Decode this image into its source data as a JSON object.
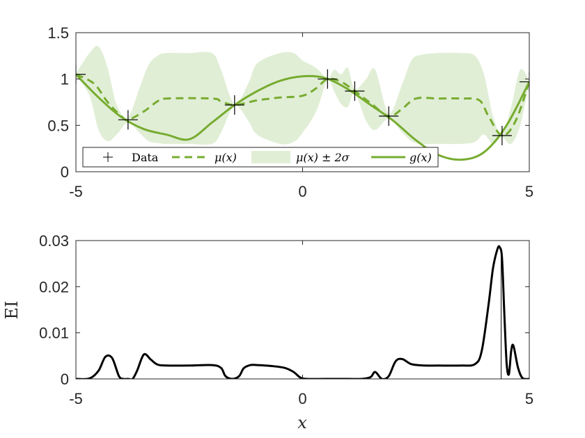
{
  "colors": {
    "green": "#77ac30",
    "band": "#e1eed6",
    "black": "#000000",
    "axis": "#262626"
  },
  "chart_data": [
    {
      "type": "line",
      "xlim": [
        -5,
        5
      ],
      "ylim": [
        0,
        1.5
      ],
      "xticks": [
        "-5",
        "0",
        "5"
      ],
      "yticks": [
        "0",
        "0.5",
        "1",
        "1.5"
      ],
      "xticks_values": [
        -5,
        0,
        5
      ],
      "yticks_values": [
        0,
        0.5,
        1,
        1.5
      ],
      "grid": false,
      "legend": {
        "placement": "bottom-left",
        "entries": [
          "Data",
          "μ(x)",
          "μ(x) ± 2σ",
          "g(x)"
        ]
      },
      "data_points": {
        "x": [
          -5.0,
          -3.85,
          -1.5,
          0.55,
          1.15,
          1.9,
          4.4,
          5.0
        ],
        "y": [
          1.05,
          0.56,
          0.72,
          1.0,
          0.87,
          0.6,
          0.39,
          0.97
        ]
      },
      "g": {
        "x": [
          -5.0,
          -4.5,
          -4.0,
          -3.5,
          -3.0,
          -2.5,
          -2.0,
          -1.5,
          -1.0,
          -0.5,
          0.0,
          0.5,
          1.0,
          1.5,
          2.0,
          2.5,
          3.0,
          3.5,
          4.0,
          4.5,
          5.0
        ],
        "y": [
          1.05,
          0.8,
          0.59,
          0.46,
          0.4,
          0.35,
          0.53,
          0.72,
          0.87,
          0.98,
          1.03,
          1.01,
          0.89,
          0.72,
          0.55,
          0.34,
          0.18,
          0.13,
          0.21,
          0.5,
          0.97
        ]
      },
      "mu": {
        "x": [
          -5.0,
          -4.6,
          -4.3,
          -4.0,
          -3.85,
          -3.5,
          -3.2,
          -3.0,
          -2.0,
          -1.8,
          -1.5,
          -1.0,
          -0.5,
          0.0,
          0.3,
          0.55,
          0.85,
          1.15,
          1.5,
          1.9,
          2.2,
          2.5,
          3.0,
          3.5,
          3.9,
          4.1,
          4.4,
          4.7,
          5.0
        ],
        "y": [
          1.05,
          0.95,
          0.75,
          0.6,
          0.56,
          0.65,
          0.76,
          0.79,
          0.79,
          0.76,
          0.72,
          0.77,
          0.8,
          0.82,
          0.9,
          1.0,
          0.97,
          0.87,
          0.74,
          0.6,
          0.68,
          0.79,
          0.79,
          0.79,
          0.77,
          0.6,
          0.39,
          0.55,
          0.97
        ]
      },
      "band": {
        "x": [
          -5.0,
          -4.7,
          -4.5,
          -4.3,
          -4.1,
          -3.85,
          -3.6,
          -3.4,
          -3.2,
          -3.0,
          -2.5,
          -2.0,
          -1.8,
          -1.5,
          -1.2,
          -1.0,
          -0.5,
          -0.2,
          0.0,
          0.3,
          0.55,
          0.7,
          0.85,
          1.0,
          1.15,
          1.4,
          1.6,
          1.9,
          2.2,
          2.4,
          2.6,
          3.0,
          3.5,
          3.8,
          4.0,
          4.2,
          4.4,
          4.6,
          4.8,
          5.0
        ],
        "upper": [
          1.06,
          1.28,
          1.35,
          1.12,
          0.72,
          0.59,
          0.9,
          1.15,
          1.25,
          1.28,
          1.28,
          1.28,
          1.1,
          0.73,
          0.95,
          1.17,
          1.28,
          1.28,
          1.2,
          1.12,
          1.01,
          1.1,
          1.05,
          1.12,
          0.89,
          1.0,
          1.1,
          0.63,
          0.95,
          1.2,
          1.26,
          1.28,
          1.28,
          1.25,
          1.05,
          0.6,
          0.41,
          0.7,
          1.1,
          0.98
        ],
        "lower": [
          1.04,
          0.82,
          0.45,
          0.33,
          0.4,
          0.53,
          0.42,
          0.33,
          0.31,
          0.3,
          0.3,
          0.3,
          0.42,
          0.71,
          0.55,
          0.4,
          0.3,
          0.32,
          0.42,
          0.65,
          0.99,
          0.86,
          0.73,
          0.7,
          0.85,
          0.55,
          0.45,
          0.57,
          0.42,
          0.33,
          0.3,
          0.3,
          0.3,
          0.32,
          0.4,
          0.3,
          0.37,
          0.3,
          0.5,
          0.96
        ]
      }
    },
    {
      "type": "line",
      "xlim": [
        -5,
        5
      ],
      "ylim": [
        0,
        0.03
      ],
      "xticks": [
        "-5",
        "0",
        "5"
      ],
      "yticks": [
        "0",
        "0.01",
        "0.02",
        "0.03"
      ],
      "xticks_values": [
        -5,
        0,
        5
      ],
      "yticks_values": [
        0,
        0.01,
        0.02,
        0.03
      ],
      "ylabel": "EI",
      "xlabel": "x",
      "grid": false,
      "ei": {
        "x": [
          -5.0,
          -4.7,
          -4.5,
          -4.35,
          -4.2,
          -4.05,
          -3.95,
          -3.85,
          -3.75,
          -3.65,
          -3.5,
          -3.35,
          -3.2,
          -3.0,
          -2.5,
          -2.0,
          -1.8,
          -1.7,
          -1.55,
          -1.4,
          -1.3,
          -1.15,
          -1.0,
          -0.7,
          -0.4,
          -0.2,
          -0.05,
          0.1,
          0.5,
          1.0,
          1.3,
          1.5,
          1.6,
          1.75,
          1.9,
          2.05,
          2.2,
          2.4,
          2.7,
          3.0,
          3.5,
          3.8,
          3.95,
          4.1,
          4.2,
          4.3,
          4.35,
          4.4,
          4.45,
          4.5,
          4.55,
          4.6,
          4.65,
          4.75,
          4.85,
          5.0
        ],
        "y": [
          0.0,
          0.0001,
          0.0018,
          0.0048,
          0.0045,
          0.0006,
          0.0,
          0.0,
          0.0,
          0.0018,
          0.0053,
          0.0042,
          0.0031,
          0.0029,
          0.0029,
          0.003,
          0.0024,
          0.0006,
          0.0,
          0.0006,
          0.0023,
          0.003,
          0.003,
          0.0028,
          0.0024,
          0.0015,
          0.0003,
          0.0,
          0.0,
          0.0,
          0.0,
          0.0004,
          0.0015,
          0.0,
          0.0006,
          0.0038,
          0.0043,
          0.0032,
          0.0029,
          0.0029,
          0.0029,
          0.0032,
          0.006,
          0.016,
          0.024,
          0.0282,
          0.0285,
          0.026,
          0.014,
          0.0035,
          0.001,
          0.006,
          0.0072,
          0.0025,
          0.0002,
          0.0
        ]
      },
      "marker_x": 4.38
    }
  ]
}
